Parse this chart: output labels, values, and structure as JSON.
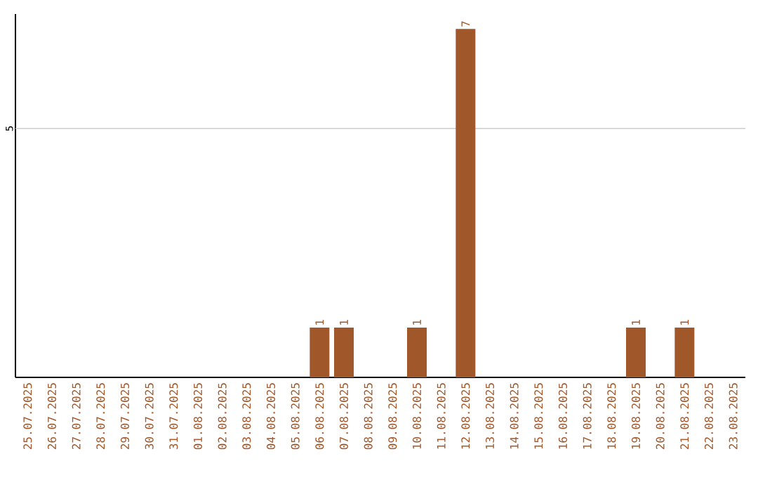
{
  "chart_data": {
    "type": "bar",
    "ylim": [
      0,
      7.3
    ],
    "categories": [
      "25.07.2025",
      "26.07.2025",
      "27.07.2025",
      "28.07.2025",
      "29.07.2025",
      "30.07.2025",
      "31.07.2025",
      "01.08.2025",
      "02.08.2025",
      "03.08.2025",
      "04.08.2025",
      "05.08.2025",
      "06.08.2025",
      "07.08.2025",
      "08.08.2025",
      "09.08.2025",
      "10.08.2025",
      "11.08.2025",
      "12.08.2025",
      "13.08.2025",
      "14.08.2025",
      "15.08.2025",
      "16.08.2025",
      "17.08.2025",
      "18.08.2025",
      "19.08.2025",
      "20.08.2025",
      "21.08.2025",
      "22.08.2025",
      "23.08.2025"
    ],
    "values": [
      null,
      null,
      null,
      null,
      null,
      null,
      null,
      null,
      null,
      null,
      null,
      null,
      1,
      1,
      null,
      null,
      1,
      null,
      7,
      null,
      null,
      null,
      null,
      null,
      null,
      1,
      null,
      1,
      null,
      null
    ],
    "value_labels": [
      null,
      null,
      null,
      null,
      null,
      null,
      null,
      null,
      null,
      null,
      null,
      null,
      "1",
      "1",
      null,
      null,
      "1",
      null,
      "7",
      null,
      null,
      null,
      null,
      null,
      null,
      "1",
      null,
      "1",
      null,
      null
    ],
    "color": "#a0572a",
    "ref_lines": [
      {
        "axis": "y",
        "value": 5,
        "label": "5",
        "color": "#cccccc"
      }
    ]
  }
}
